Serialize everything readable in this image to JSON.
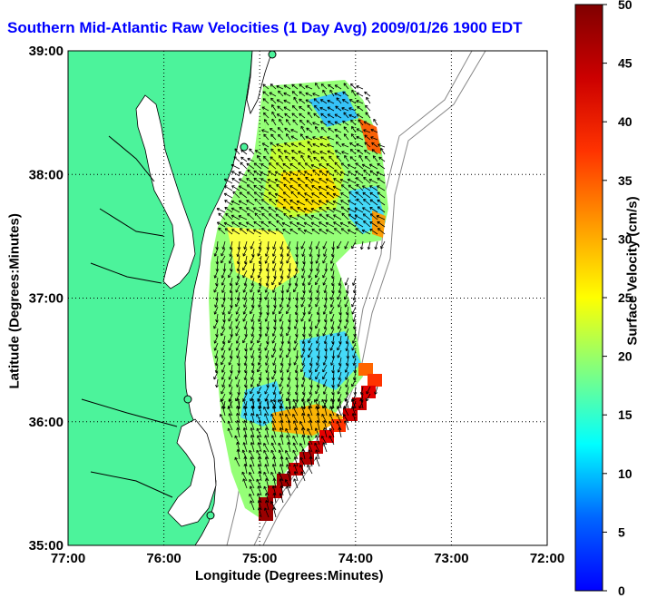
{
  "title": "Southern Mid-Atlantic Raw Velocities (1 Day Avg) 2009/01/26 1900 EDT",
  "xlabel": "Longitude (Degrees:Minutes)",
  "ylabel": "Latitude (Degrees:Minutes)",
  "colorbar": {
    "label": "Surface Velocity (cm/s)",
    "min": 0,
    "max": 50,
    "ticks": [
      "0",
      "5",
      "10",
      "15",
      "20",
      "25",
      "30",
      "35",
      "40",
      "45",
      "50"
    ]
  },
  "axes": {
    "x_ticks": [
      "77:00",
      "76:00",
      "75:00",
      "74:00",
      "73:00",
      "72:00"
    ],
    "y_ticks": [
      "39:00",
      "38:00",
      "37:00",
      "36:00",
      "35:00"
    ],
    "lon_range": [
      -77,
      -72
    ],
    "lat_range": [
      35,
      39
    ]
  },
  "colors": {
    "land": "#4cf39b",
    "title": "#0000ff",
    "grid": "#000000"
  }
}
